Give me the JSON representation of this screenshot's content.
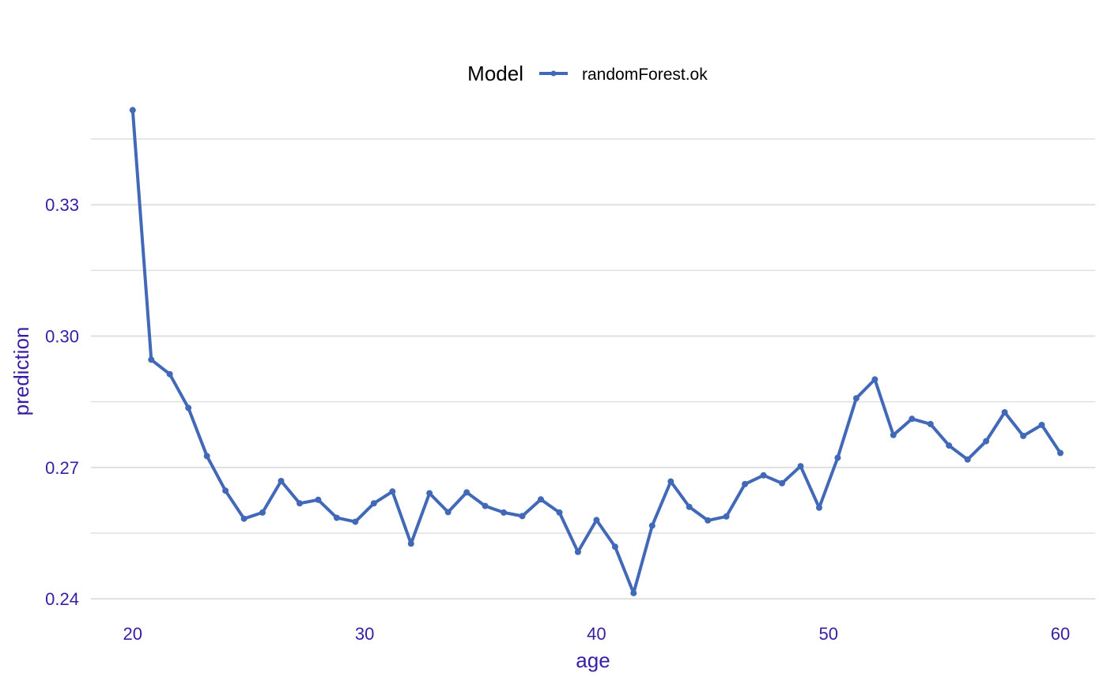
{
  "chart_data": {
    "type": "line",
    "legend": {
      "title": "Model",
      "position": "top"
    },
    "xlabel": "age",
    "ylabel": "prediction",
    "xlim": [
      18.2,
      61.5
    ],
    "ylim": [
      0.2375,
      0.3515
    ],
    "x_ticks": [
      20,
      30,
      40,
      50,
      60
    ],
    "y_ticks": [
      0.24,
      0.27,
      0.3,
      0.33
    ],
    "y_tick_labels": [
      "0.24",
      "0.27",
      "0.30",
      "0.33"
    ],
    "grid": {
      "horizontal": true,
      "vertical": false
    },
    "colors": {
      "series": "#4269b8",
      "axis_text": "#371ea3",
      "grid": "#e0e0e0"
    },
    "series": [
      {
        "name": "randomForest.ok",
        "x": [
          20,
          20.8,
          21.6,
          22.4,
          23.2,
          24.0,
          24.8,
          25.6,
          26.4,
          27.2,
          28.0,
          28.8,
          29.6,
          30.4,
          31.2,
          32.0,
          32.8,
          33.6,
          34.4,
          35.2,
          36.0,
          36.8,
          37.6,
          38.4,
          39.2,
          40.0,
          40.8,
          41.6,
          42.4,
          43.2,
          44.0,
          44.8,
          45.6,
          46.4,
          47.2,
          48.0,
          48.8,
          49.6,
          50.4,
          51.2,
          52.0,
          52.8,
          53.6,
          54.4,
          55.2,
          56.0,
          56.8,
          57.6,
          58.4,
          59.2,
          60.0
        ],
        "y": [
          0.3516,
          0.2946,
          0.2913,
          0.2836,
          0.2726,
          0.2647,
          0.2583,
          0.2597,
          0.2669,
          0.2618,
          0.2626,
          0.2585,
          0.2576,
          0.2618,
          0.2645,
          0.2526,
          0.2641,
          0.2598,
          0.2643,
          0.2612,
          0.2597,
          0.2589,
          0.2627,
          0.2597,
          0.2507,
          0.258,
          0.2519,
          0.2413,
          0.2567,
          0.2668,
          0.261,
          0.2579,
          0.2588,
          0.2662,
          0.2682,
          0.2664,
          0.2703,
          0.2608,
          0.2722,
          0.2858,
          0.2901,
          0.2774,
          0.2811,
          0.2799,
          0.275,
          0.2718,
          0.276,
          0.2826,
          0.2772,
          0.2797,
          0.2733
        ]
      }
    ]
  }
}
